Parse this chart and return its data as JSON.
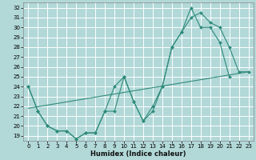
{
  "xlabel": "Humidex (Indice chaleur)",
  "background_color": "#b2d8d8",
  "grid_color": "#ffffff",
  "line_color": "#2e8b7a",
  "xlim": [
    -0.5,
    23.5
  ],
  "ylim": [
    18.5,
    32.5
  ],
  "xticks": [
    0,
    1,
    2,
    3,
    4,
    5,
    6,
    7,
    8,
    9,
    10,
    11,
    12,
    13,
    14,
    15,
    16,
    17,
    18,
    19,
    20,
    21,
    22,
    23
  ],
  "yticks": [
    19,
    20,
    21,
    22,
    23,
    24,
    25,
    26,
    27,
    28,
    29,
    30,
    31,
    32
  ],
  "series": [
    {
      "x": [
        0,
        1,
        2,
        3,
        4,
        5,
        6,
        7,
        8,
        9,
        10,
        11,
        12,
        13,
        14,
        15,
        16,
        17,
        18,
        19,
        20,
        21
      ],
      "y": [
        24,
        21.5,
        20,
        19.5,
        19.5,
        18.7,
        19.3,
        19.3,
        21.5,
        21.5,
        25,
        22.5,
        20.5,
        21.5,
        24,
        28,
        29.5,
        32,
        30,
        30,
        28.5,
        25
      ]
    },
    {
      "x": [
        0,
        1,
        2,
        3,
        4,
        5,
        6,
        7,
        8,
        9,
        10,
        11,
        12,
        13,
        14,
        15,
        16,
        17,
        18,
        19,
        20,
        21,
        22,
        23
      ],
      "y": [
        24,
        21.5,
        20,
        19.5,
        19.5,
        18.7,
        19.3,
        19.3,
        21.5,
        24,
        25,
        22.5,
        20.5,
        22,
        24,
        28,
        29.5,
        31,
        31.5,
        30.5,
        30,
        28,
        25.5,
        25.5
      ]
    },
    {
      "x": [
        0,
        23
      ],
      "y": [
        21.8,
        25.5
      ]
    }
  ]
}
